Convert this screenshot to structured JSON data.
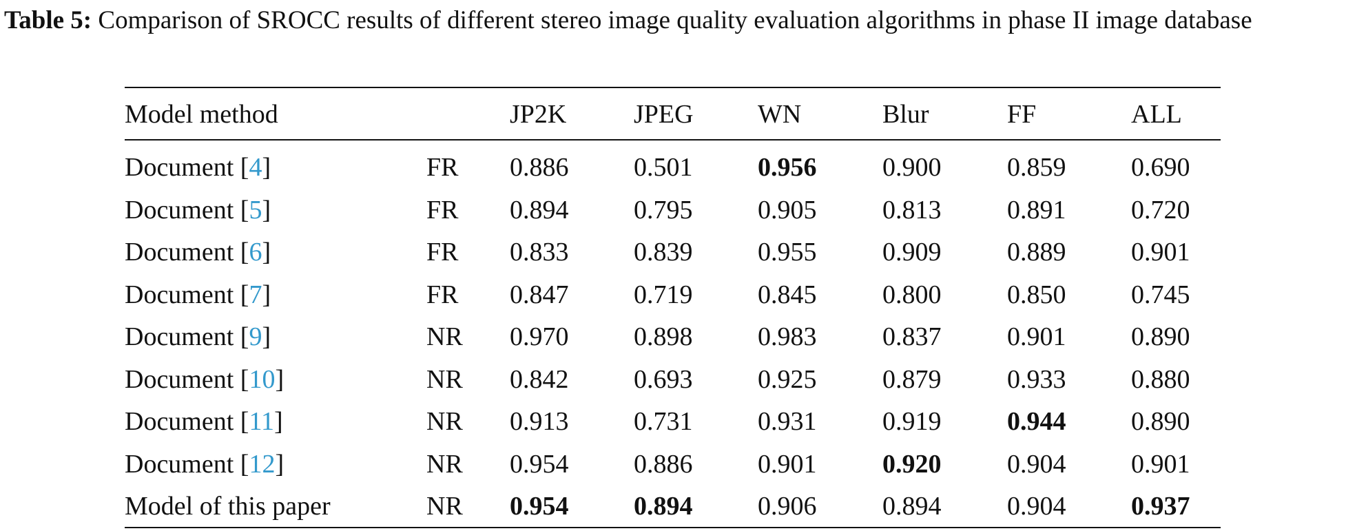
{
  "caption": {
    "label": "Table 5:",
    "text": "Comparison of SROCC results of different stereo image quality evaluation algorithms in phase II image database"
  },
  "table": {
    "header": [
      "Model method",
      "JP2K",
      "JPEG",
      "WN",
      "Blur",
      "FF",
      "ALL"
    ],
    "rows": [
      {
        "method": [
          "Document [",
          "4",
          "]"
        ],
        "type": "FR",
        "values": [
          "0.886",
          "0.501",
          "0.956",
          "0.900",
          "0.859",
          "0.690"
        ],
        "bold": [
          2
        ]
      },
      {
        "method": [
          "Document [",
          "5",
          "]"
        ],
        "type": "FR",
        "values": [
          "0.894",
          "0.795",
          "0.905",
          "0.813",
          "0.891",
          "0.720"
        ],
        "bold": []
      },
      {
        "method": [
          "Document [",
          "6",
          "]"
        ],
        "type": "FR",
        "values": [
          "0.833",
          "0.839",
          "0.955",
          "0.909",
          "0.889",
          "0.901"
        ],
        "bold": []
      },
      {
        "method": [
          "Document [",
          "7",
          "]"
        ],
        "type": "FR",
        "values": [
          "0.847",
          "0.719",
          "0.845",
          "0.800",
          "0.850",
          "0.745"
        ],
        "bold": []
      },
      {
        "method": [
          "Document [",
          "9",
          "]"
        ],
        "type": "NR",
        "values": [
          "0.970",
          "0.898",
          "0.983",
          "0.837",
          "0.901",
          "0.890"
        ],
        "bold": []
      },
      {
        "method": [
          "Document [",
          "10",
          "]"
        ],
        "type": "NR",
        "values": [
          "0.842",
          "0.693",
          "0.925",
          "0.879",
          "0.933",
          "0.880"
        ],
        "bold": []
      },
      {
        "method": [
          "Document [",
          "11",
          "]"
        ],
        "type": "NR",
        "values": [
          "0.913",
          "0.731",
          "0.931",
          "0.919",
          "0.944",
          "0.890"
        ],
        "bold": [
          4
        ]
      },
      {
        "method": [
          "Document [",
          "12",
          "]"
        ],
        "type": "NR",
        "values": [
          "0.954",
          "0.886",
          "0.901",
          "0.920",
          "0.904",
          "0.901"
        ],
        "bold": [
          3
        ]
      },
      {
        "method": [
          "Model of this paper"
        ],
        "type": "NR",
        "values": [
          "0.954",
          "0.894",
          "0.906",
          "0.894",
          "0.904",
          "0.937"
        ],
        "bold": [
          0,
          1,
          5
        ]
      }
    ]
  }
}
